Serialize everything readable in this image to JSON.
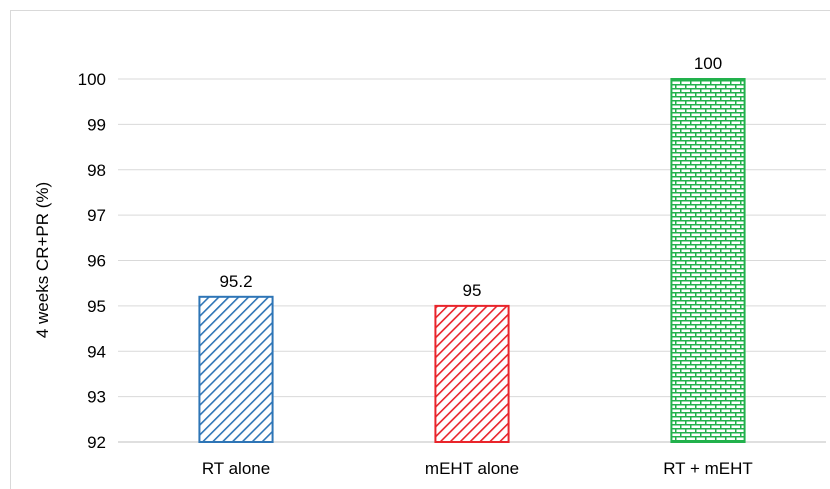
{
  "chart_data": {
    "type": "bar",
    "title": "",
    "xlabel": "",
    "ylabel": "4 weeks CR+PR (%)",
    "ylim": [
      92,
      100
    ],
    "yticks": [
      92,
      93,
      94,
      95,
      96,
      97,
      98,
      99,
      100
    ],
    "grid": true,
    "legend": "none",
    "categories": [
      "RT alone",
      "mEHT alone",
      "RT + mEHT"
    ],
    "values": [
      95.2,
      95,
      100
    ],
    "data_labels": [
      "95.2",
      "95",
      "100"
    ],
    "bar_colors": [
      "#2e75b6",
      "#e8242b",
      "#22b14c"
    ],
    "bar_patterns": [
      "diagonal-hatch",
      "diagonal-hatch",
      "brick"
    ]
  }
}
